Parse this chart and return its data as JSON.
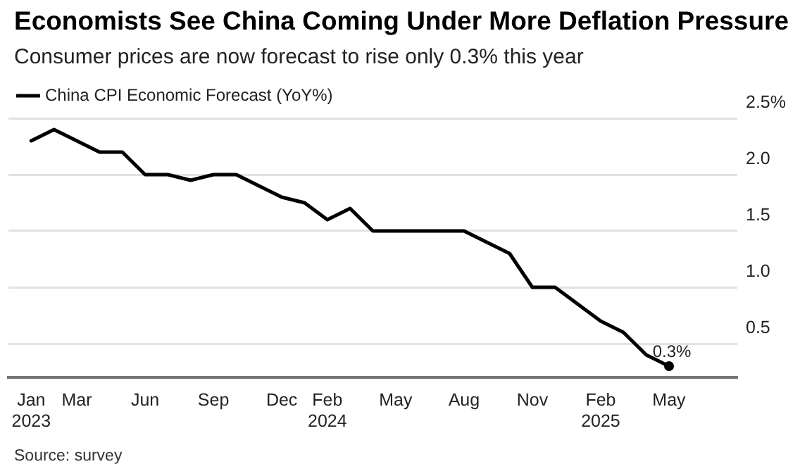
{
  "chart_data": {
    "type": "line",
    "title": "Economists See China Coming Under More Deflation Pressure",
    "subtitle": "Consumer prices are now forecast to rise only 0.3% this year",
    "x": [
      "2023-01",
      "2023-02",
      "2023-03",
      "2023-04",
      "2023-05",
      "2023-06",
      "2023-07",
      "2023-08",
      "2023-09",
      "2023-10",
      "2023-11",
      "2023-12",
      "2024-01",
      "2024-02",
      "2024-03",
      "2024-04",
      "2024-05",
      "2024-06",
      "2024-07",
      "2024-08",
      "2024-09",
      "2024-10",
      "2024-11",
      "2024-12",
      "2025-01",
      "2025-02",
      "2025-03",
      "2025-04",
      "2025-05"
    ],
    "series": [
      {
        "name": "China CPI Economic Forecast (YoY%)",
        "color": "#000000",
        "values": [
          2.3,
          2.4,
          2.3,
          2.2,
          2.2,
          2.0,
          2.0,
          1.95,
          2.0,
          2.0,
          1.9,
          1.8,
          1.75,
          1.6,
          1.7,
          1.5,
          1.5,
          1.5,
          1.5,
          1.5,
          1.4,
          1.3,
          1.0,
          1.0,
          0.85,
          0.7,
          0.6,
          0.4,
          0.3
        ]
      }
    ],
    "xlim": [
      "2022-12",
      "2025-08"
    ],
    "xticks": [
      {
        "value": "2023-01",
        "label": "Jan\n2023"
      },
      {
        "value": "2023-03",
        "label": "Mar"
      },
      {
        "value": "2023-06",
        "label": "Jun"
      },
      {
        "value": "2023-09",
        "label": "Sep"
      },
      {
        "value": "2023-12",
        "label": "Dec"
      },
      {
        "value": "2024-02",
        "label": "Feb\n2024"
      },
      {
        "value": "2024-05",
        "label": "May"
      },
      {
        "value": "2024-08",
        "label": "Aug"
      },
      {
        "value": "2024-11",
        "label": "Nov"
      },
      {
        "value": "2025-02",
        "label": "Feb\n2025"
      },
      {
        "value": "2025-05",
        "label": "May"
      }
    ],
    "ylim": [
      0.2,
      2.5
    ],
    "yticks": [
      0.5,
      {
        "value": 1,
        "label": "1.0"
      },
      1.5,
      {
        "value": 2,
        "label": "2.0"
      },
      {
        "value": 2.5,
        "label": "2.5%"
      }
    ],
    "grid": "y",
    "legend": "top left",
    "marker": "none",
    "line_style": "solid",
    "annotations": [
      {
        "text": "0.3%",
        "x": "2025-05",
        "y": 0.3
      },
      "Source: survey"
    ]
  }
}
